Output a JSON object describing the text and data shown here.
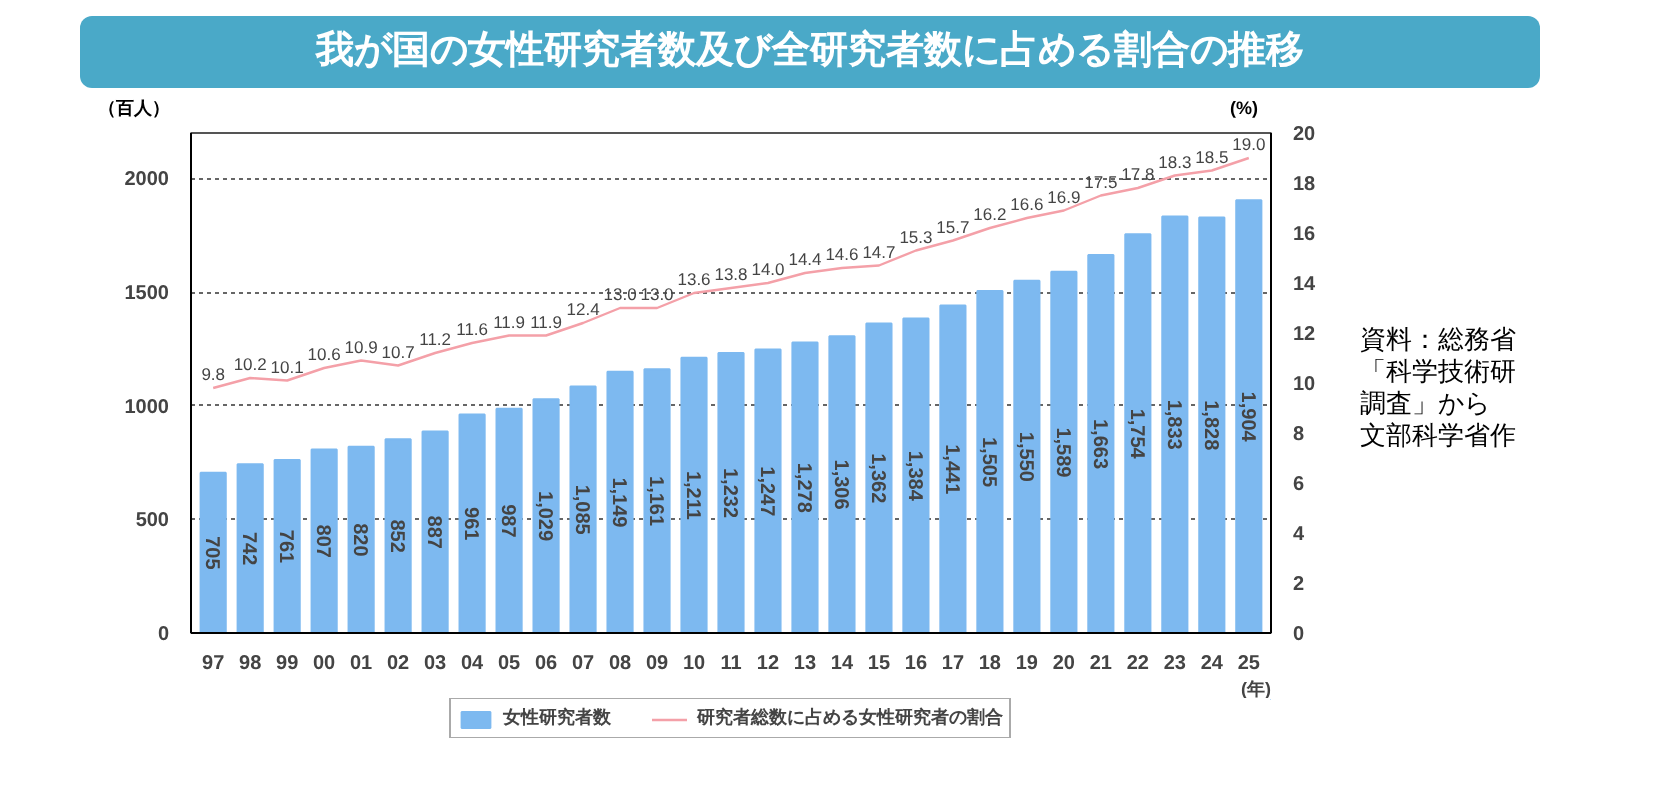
{
  "chart_data": {
    "type": "bar",
    "title": "我が国の女性研究者数及び全研究者数に占める割合の推移",
    "ylabel": "（百人）",
    "y2label": "(%)",
    "xlabel": "(年)",
    "categories": [
      "97",
      "98",
      "99",
      "00",
      "01",
      "02",
      "03",
      "04",
      "05",
      "06",
      "07",
      "08",
      "09",
      "10",
      "11",
      "12",
      "13",
      "14",
      "15",
      "16",
      "17",
      "18",
      "19",
      "20",
      "21",
      "22",
      "23",
      "24",
      "25"
    ],
    "series": [
      {
        "name": "女性研究者数",
        "color": "#7db9f0",
        "values": [
          705,
          742,
          761,
          807,
          820,
          852,
          887,
          961,
          987,
          1029,
          1085,
          1149,
          1161,
          1211,
          1232,
          1247,
          1278,
          1306,
          1362,
          1384,
          1441,
          1505,
          1550,
          1589,
          1663,
          1754,
          1833,
          1828,
          1904
        ],
        "value_labels": [
          "705",
          "742",
          "761",
          "807",
          "820",
          "852",
          "887",
          "961",
          "987",
          "1,029",
          "1,085",
          "1,149",
          "1,161",
          "1,211",
          "1,232",
          "1,247",
          "1,278",
          "1,306",
          "1,362",
          "1,384",
          "1,441",
          "1,505",
          "1,550",
          "1,589",
          "1,663",
          "1,754",
          "1,833",
          "1,828",
          "1,904"
        ]
      },
      {
        "name": "研究者総数に占める女性研究者の割合",
        "color": "#f4a0a8",
        "type": "line",
        "axis": "y2",
        "values": [
          9.8,
          10.2,
          10.1,
          10.6,
          10.9,
          10.7,
          11.2,
          11.6,
          11.9,
          11.9,
          12.4,
          13.0,
          13.0,
          13.6,
          13.8,
          14.0,
          14.4,
          14.6,
          14.7,
          15.3,
          15.7,
          16.2,
          16.6,
          16.9,
          17.5,
          17.8,
          18.3,
          18.5,
          19.0
        ],
        "value_labels": [
          "9.8",
          "10.2",
          "10.1",
          "10.6",
          "10.9",
          "10.7",
          "11.2",
          "11.6",
          "11.9",
          "11.9",
          "12.4",
          "13.0",
          "13.0",
          "13.6",
          "13.8",
          "14.0",
          "14.4",
          "14.6",
          "14.7",
          "15.3",
          "15.7",
          "16.2",
          "16.6",
          "16.9",
          "17.5",
          "17.8",
          "18.3",
          "18.5",
          "19.0"
        ]
      }
    ],
    "ylim": [
      0,
      2200
    ],
    "yticks": [
      0,
      500,
      1000,
      1500,
      2000
    ],
    "y2lim": [
      0,
      20
    ],
    "y2ticks": [
      0,
      2,
      4,
      6,
      8,
      10,
      12,
      14,
      16,
      18,
      20
    ],
    "grid": "y",
    "legend": "bottom",
    "annotations": [
      "資料：総務省",
      "「科学技術研",
      "調査」から",
      "文部科学省作"
    ]
  }
}
